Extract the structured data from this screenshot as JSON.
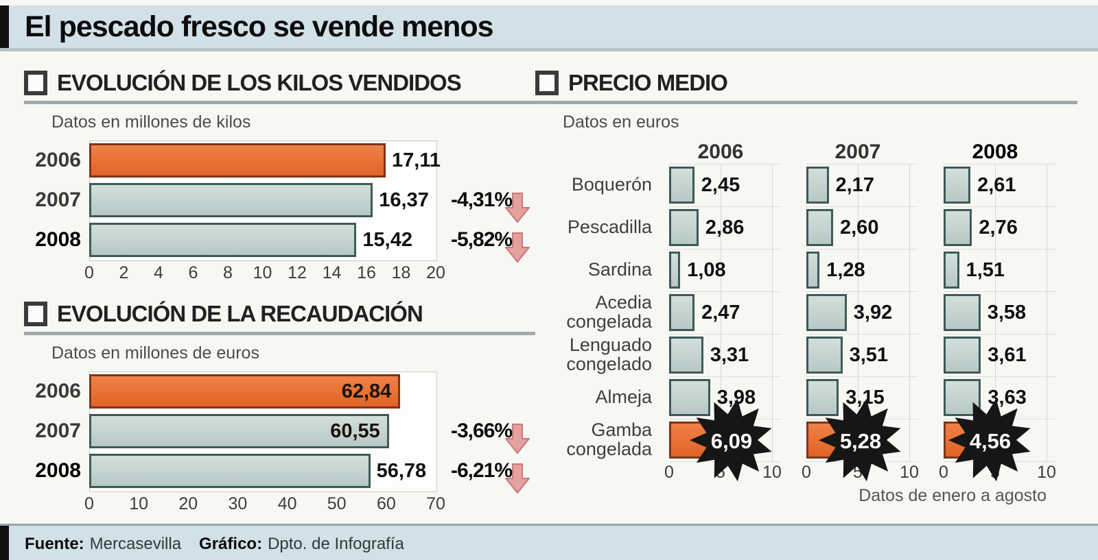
{
  "header": {
    "title": "El pescado fresco se vende menos"
  },
  "footer": {
    "source_label": "Fuente:",
    "source": "Mercasevilla",
    "credit_label": "Gráfico:",
    "credit": "Dpto. de Infografía"
  },
  "colors": {
    "band_background": "#d2e0e8",
    "orange_bar": "#e87134",
    "orange_border": "#7c351a",
    "teal_bar": "#c4d3d0",
    "teal_border": "#3e5a55",
    "decline_arrow": "#e6a0a0",
    "burst_black": "#161616"
  },
  "chart_data": [
    {
      "id": "kilos-vendidos",
      "type": "bar",
      "orientation": "horizontal",
      "title": "EVOLUCIÓN DE LOS KILOS VENDIDOS",
      "subtitle": "Datos en millones de kilos",
      "categories": [
        "2006",
        "2007",
        "2008"
      ],
      "values": [
        17.11,
        16.37,
        15.42
      ],
      "value_labels": [
        "17,11",
        "16,37",
        "15,42"
      ],
      "label_inside": [
        false,
        false,
        false
      ],
      "change_labels": [
        "",
        "-4,31%",
        "-5,82%"
      ],
      "bar_colors": [
        "orange",
        "teal",
        "teal"
      ],
      "xlim": [
        0,
        20
      ],
      "xticks": [
        "0",
        "2",
        "4",
        "6",
        "8",
        "10",
        "12",
        "14",
        "16",
        "18",
        "20"
      ],
      "grid": false
    },
    {
      "id": "recaudacion",
      "type": "bar",
      "orientation": "horizontal",
      "title": "EVOLUCIÓN DE LA RECAUDACIÓN",
      "subtitle": "Datos en millones de euros",
      "categories": [
        "2006",
        "2007",
        "2008"
      ],
      "values": [
        62.84,
        60.55,
        56.78
      ],
      "value_labels": [
        "62,84",
        "60,55",
        "56,78"
      ],
      "label_inside": [
        true,
        true,
        false
      ],
      "change_labels": [
        "",
        "-3,66%",
        "-6,21%"
      ],
      "bar_colors": [
        "orange",
        "teal",
        "teal"
      ],
      "xlim": [
        0,
        70
      ],
      "xticks": [
        "0",
        "10",
        "20",
        "30",
        "40",
        "50",
        "60",
        "70"
      ],
      "grid": false
    },
    {
      "id": "precio-medio",
      "type": "bar",
      "orientation": "horizontal",
      "title": "PRECIO MEDIO",
      "subtitle": "Datos en euros",
      "note": "Datos de enero a agosto",
      "categories": [
        "Boquerón",
        "Pescadilla",
        "Sardina",
        "Acedia congelada",
        "Lenguado congelado",
        "Almeja",
        "Gamba congelada"
      ],
      "series": [
        {
          "name": "2006",
          "emphasis": false,
          "values": [
            2.45,
            2.86,
            1.08,
            2.47,
            3.31,
            3.98,
            6.09
          ],
          "labels": [
            "2,45",
            "2,86",
            "1,08",
            "2,47",
            "3,31",
            "3,98",
            "6,09"
          ]
        },
        {
          "name": "2007",
          "emphasis": false,
          "values": [
            2.17,
            2.6,
            1.28,
            3.92,
            3.51,
            3.15,
            5.28
          ],
          "labels": [
            "2,17",
            "2,60",
            "1,28",
            "3,92",
            "3,51",
            "3,15",
            "5,28"
          ]
        },
        {
          "name": "2008",
          "emphasis": true,
          "values": [
            2.61,
            2.76,
            1.51,
            3.58,
            3.61,
            3.63,
            4.56
          ],
          "labels": [
            "2,61",
            "2,76",
            "1,51",
            "3,58",
            "3,61",
            "3,63",
            "4,56"
          ]
        }
      ],
      "highlight_category_index": 6,
      "xlim": [
        0,
        10
      ],
      "xticks": [
        "0",
        "5",
        "10"
      ],
      "grid": true
    }
  ]
}
